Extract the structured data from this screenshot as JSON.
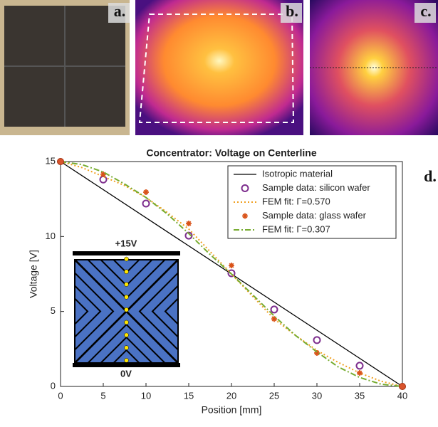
{
  "panels": {
    "labels": [
      "a.",
      "b.",
      "c.",
      "d."
    ]
  },
  "chart_data": {
    "type": "line",
    "title": "Concentrator: Voltage on Centerline",
    "x_label": "Position [mm]",
    "y_label": "Voltage [V]",
    "xlim": [
      0,
      40
    ],
    "xticks": [
      0,
      5,
      10,
      15,
      20,
      25,
      30,
      35,
      40
    ],
    "ylim": [
      0,
      15
    ],
    "yticks": [
      0,
      5,
      10,
      15
    ],
    "legend": "top-right",
    "annotations": [
      "+15V",
      "0V"
    ],
    "series": [
      {
        "name": "Isotropic material",
        "color": "#000000",
        "marker": "line",
        "dash": "solid",
        "x": [
          0,
          40
        ],
        "values": [
          15,
          0
        ]
      },
      {
        "name": "Sample data: silicon wafer",
        "color": "#7e2f8e",
        "marker": "circle",
        "x": [
          5,
          10,
          15,
          20,
          25,
          30,
          35
        ],
        "values": [
          13.8,
          12.2,
          10.06,
          7.55,
          5.13,
          3.09,
          1.38
        ]
      },
      {
        "name": "FEM fit: Γ=0.570",
        "color": "#f0a020",
        "marker": "line",
        "dash": "dotted",
        "x": [
          0,
          2.5,
          5,
          7.5,
          10,
          12.5,
          15,
          17.5,
          20,
          22.5,
          25,
          27.5,
          30,
          32.5,
          35,
          37.5,
          40
        ],
        "values": [
          15,
          14.6,
          14.0,
          13.4,
          12.6,
          11.6,
          10.5,
          9.0,
          7.5,
          6.0,
          4.5,
          3.4,
          2.4,
          1.6,
          0.9,
          0.35,
          0
        ]
      },
      {
        "name": "Sample data: glass wafer",
        "color": "#d95319",
        "marker": "star",
        "x": [
          5,
          10,
          15,
          20,
          25,
          30,
          35
        ],
        "values": [
          14.15,
          12.96,
          10.87,
          8.07,
          4.5,
          2.23,
          0.9
        ]
      },
      {
        "name": "FEM fit: Γ=0.307",
        "color": "#77ac30",
        "marker": "line",
        "dash": "dashdot",
        "x": [
          0,
          2.5,
          5,
          7.5,
          10,
          12.5,
          15,
          17.5,
          20,
          22.5,
          25,
          27.5,
          30,
          32.5,
          35,
          37.5,
          40
        ],
        "values": [
          15,
          14.8,
          14.3,
          13.5,
          12.6,
          11.5,
          10.2,
          8.8,
          7.5,
          6.1,
          4.7,
          3.4,
          2.3,
          1.3,
          0.6,
          0.15,
          0
        ]
      }
    ],
    "boundary_points": {
      "color": "#d9542c",
      "x": [
        0,
        40
      ],
      "values": [
        15,
        0
      ]
    }
  }
}
